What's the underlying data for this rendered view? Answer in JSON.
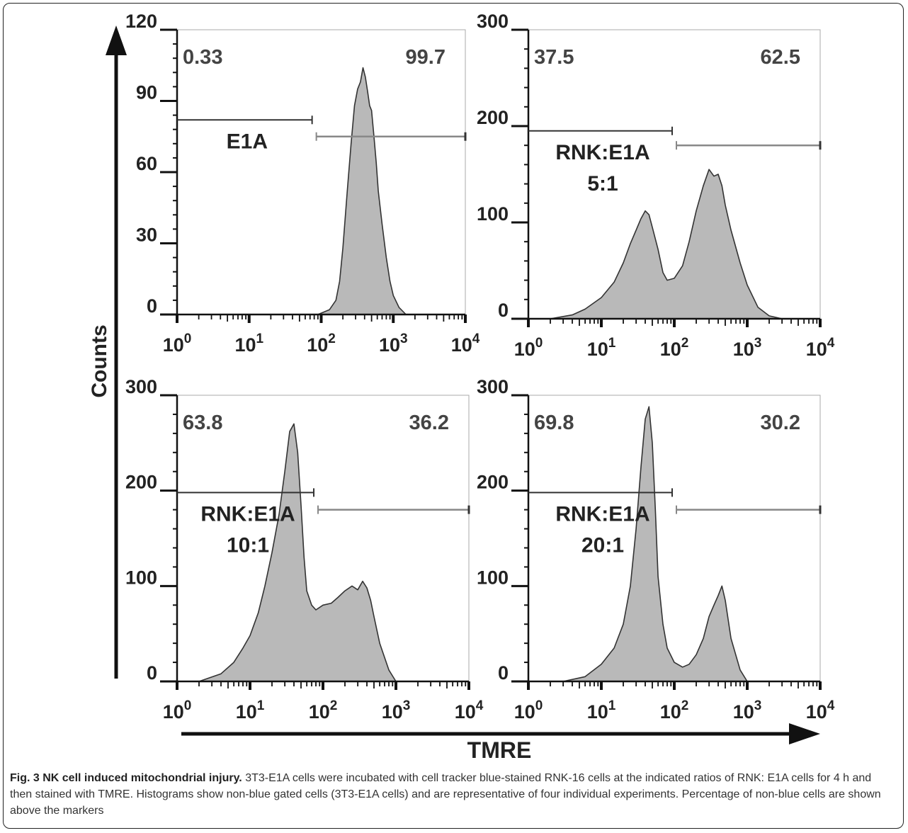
{
  "figure": {
    "y_axis_title": "Counts",
    "x_axis_title": "TMRE",
    "caption_title": "Fig. 3 NK cell induced mitochondrial injury.",
    "caption_text": "3T3-E1A cells were incubated with cell tracker blue-stained RNK-16 cells at the indicated ratios of RNK: E1A cells for 4 h and then stained with TMRE. Histograms show non-blue gated cells (3T3-E1A cells) and are representative of four individual experiments. Percentage of non-blue cells are shown above the markers",
    "fill_color": "#b9b9b9",
    "line_color": "#333333"
  },
  "chart_data": [
    {
      "type": "area",
      "label_lines": [
        "E1A"
      ],
      "pct_left": "0.33",
      "pct_right": "99.7",
      "x_scale": "log",
      "xlim": [
        1,
        10000
      ],
      "ylim": [
        0,
        120
      ],
      "y_ticks": [
        0,
        30,
        60,
        90,
        120
      ],
      "x_ticks": [
        "10^0",
        "10^1",
        "10^2",
        "10^3",
        "10^4"
      ],
      "marker_split": 80,
      "marker_left_y": 82,
      "marker_right_y": 75,
      "x": [
        90,
        130,
        160,
        180,
        200,
        230,
        260,
        290,
        320,
        350,
        380,
        410,
        440,
        470,
        500,
        540,
        580,
        620,
        700,
        800,
        900,
        1000,
        1200,
        1500
      ],
      "y": [
        0,
        2,
        6,
        14,
        28,
        52,
        72,
        88,
        95,
        98,
        104,
        100,
        94,
        88,
        86,
        75,
        64,
        52,
        38,
        24,
        14,
        8,
        3,
        0
      ]
    },
    {
      "type": "area",
      "label_lines": [
        "RNK:E1A",
        "5:1"
      ],
      "pct_left": "37.5",
      "pct_right": "62.5",
      "x_scale": "log",
      "xlim": [
        1,
        10000
      ],
      "ylim": [
        0,
        300
      ],
      "y_ticks": [
        0,
        100,
        200,
        300
      ],
      "x_ticks": [
        "10^0",
        "10^1",
        "10^2",
        "10^3",
        "10^4"
      ],
      "marker_split": 100,
      "marker_left_y": 195,
      "marker_right_y": 180,
      "x": [
        2,
        4,
        6,
        10,
        15,
        20,
        25,
        30,
        35,
        40,
        45,
        50,
        60,
        70,
        80,
        100,
        130,
        160,
        200,
        250,
        300,
        350,
        400,
        450,
        500,
        600,
        800,
        1000,
        1400,
        2000,
        3000
      ],
      "y": [
        0,
        4,
        10,
        22,
        38,
        58,
        78,
        92,
        104,
        112,
        108,
        95,
        72,
        48,
        40,
        42,
        55,
        80,
        112,
        138,
        155,
        148,
        150,
        138,
        118,
        92,
        58,
        35,
        12,
        3,
        0
      ]
    },
    {
      "type": "area",
      "label_lines": [
        "RNK:E1A",
        "10:1"
      ],
      "pct_left": "63.8",
      "pct_right": "36.2",
      "x_scale": "log",
      "xlim": [
        1,
        10000
      ],
      "ylim": [
        0,
        300
      ],
      "y_ticks": [
        0,
        100,
        200,
        300
      ],
      "x_ticks": [
        "10^0",
        "10^1",
        "10^2",
        "10^3",
        "10^4"
      ],
      "marker_split": 80,
      "marker_left_y": 198,
      "marker_right_y": 180,
      "x": [
        2,
        4,
        6,
        8,
        10,
        13,
        16,
        20,
        25,
        30,
        35,
        40,
        45,
        50,
        55,
        60,
        70,
        80,
        100,
        130,
        160,
        200,
        250,
        300,
        350,
        400,
        450,
        500,
        600,
        800,
        1000
      ],
      "y": [
        0,
        8,
        20,
        35,
        48,
        72,
        100,
        135,
        175,
        220,
        262,
        270,
        240,
        185,
        130,
        95,
        80,
        75,
        80,
        82,
        88,
        95,
        100,
        96,
        105,
        98,
        85,
        68,
        40,
        12,
        0
      ]
    },
    {
      "type": "area",
      "label_lines": [
        "RNK:E1A",
        "20:1"
      ],
      "pct_left": "69.8",
      "pct_right": "30.2",
      "x_scale": "log",
      "xlim": [
        1,
        10000
      ],
      "ylim": [
        0,
        300
      ],
      "y_ticks": [
        0,
        100,
        200,
        300
      ],
      "x_ticks": [
        "10^0",
        "10^1",
        "10^2",
        "10^3",
        "10^4"
      ],
      "marker_split": 100,
      "marker_left_y": 198,
      "marker_right_y": 180,
      "x": [
        3,
        6,
        10,
        15,
        20,
        25,
        30,
        35,
        40,
        45,
        50,
        55,
        60,
        70,
        80,
        100,
        130,
        160,
        200,
        250,
        300,
        350,
        400,
        450,
        500,
        600,
        800,
        1000
      ],
      "y": [
        0,
        5,
        18,
        35,
        60,
        100,
        160,
        225,
        275,
        288,
        250,
        180,
        110,
        60,
        35,
        20,
        15,
        18,
        28,
        45,
        68,
        80,
        90,
        100,
        85,
        45,
        12,
        0
      ]
    }
  ]
}
